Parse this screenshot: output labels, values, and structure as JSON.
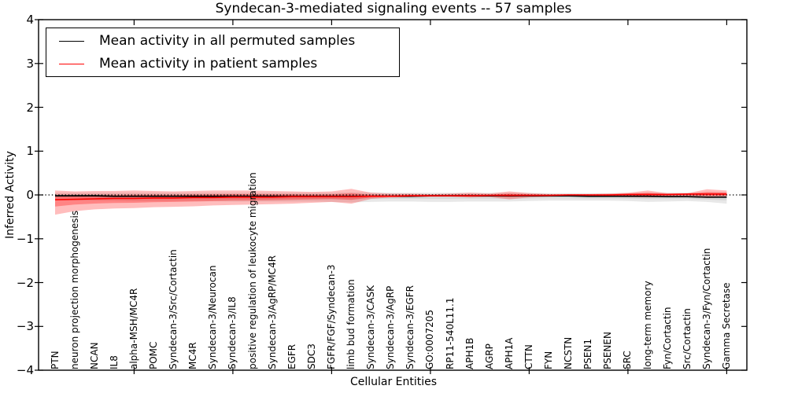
{
  "figure": {
    "title": "Syndecan-3-mediated signaling events -- 57 samples",
    "xlabel": "Cellular Entities",
    "ylabel": "Inferred Activity"
  },
  "legend": {
    "entries": [
      {
        "label": "Mean activity in all permuted samples",
        "color": "#000000"
      },
      {
        "label": "Mean activity in patient samples",
        "color": "#ff0000"
      }
    ]
  },
  "axes": {
    "y_tick_labels": [
      "4",
      "3",
      "2",
      "1",
      "0",
      "−1",
      "−2",
      "−3",
      "−4"
    ],
    "y_tick_values": [
      4,
      3,
      2,
      1,
      0,
      -1,
      -2,
      -3,
      -4
    ]
  },
  "colors": {
    "patient_line": "#ff0000",
    "permuted_line": "#000000",
    "patient_band": "rgba(255,0,0,0.26)",
    "patient_band_inner": "rgba(255,0,0,0.30)",
    "permuted_band": "rgba(0,0,0,0.09)",
    "permuted_band_inner": "rgba(0,0,0,0.07)",
    "frame": "#000000"
  },
  "chart_data": {
    "type": "line",
    "title": "Syndecan-3-mediated signaling events -- 57 samples",
    "xlabel": "Cellular Entities",
    "ylabel": "Inferred Activity",
    "ylim": [
      -4,
      4
    ],
    "grid": false,
    "legend_position": "upper left",
    "zero_line": 0,
    "x_major_tick_indices": [
      4,
      9,
      14,
      19,
      24,
      29,
      34
    ],
    "categories": [
      "PTN",
      "neuron projection morphogenesis",
      "NCAN",
      "IL8",
      "alpha-MSH/MC4R",
      "POMC",
      "Syndecan-3/Src/Cortactin",
      "MC4R",
      "Syndecan-3/Neurocan",
      "Syndecan-3/IL8",
      "positive regulation of leukocyte migration",
      "Syndecan-3/AgRP/MC4R",
      "EGFR",
      "SDC3",
      "FGFR/FGF/Syndecan-3",
      "limb bud formation",
      "Syndecan-3/CASK",
      "Syndecan-3/AgRP",
      "Syndecan-3/EGFR",
      "GO:0007205",
      "RP11-540L11.1",
      "APH1B",
      "AGRP",
      "APH1A",
      "CTTN",
      "FYN",
      "NCSTN",
      "PSEN1",
      "PSENEN",
      "SRC",
      "long-term memory",
      "Fyn/Cortactin",
      "Src/Cortactin",
      "Syndecan-3/Fyn/Cortactin",
      "Gamma Secretase"
    ],
    "series": [
      {
        "name": "Mean activity in all permuted samples",
        "color": "#000000",
        "values": [
          -0.02,
          -0.02,
          -0.02,
          -0.03,
          -0.03,
          -0.03,
          -0.03,
          -0.03,
          -0.03,
          -0.03,
          -0.03,
          -0.03,
          -0.03,
          -0.03,
          -0.03,
          -0.03,
          -0.03,
          -0.03,
          -0.03,
          -0.02,
          -0.02,
          -0.02,
          -0.02,
          -0.02,
          -0.02,
          -0.02,
          -0.02,
          -0.03,
          -0.03,
          -0.03,
          -0.03,
          -0.04,
          -0.04,
          -0.05,
          -0.05
        ],
        "band_upper": [
          0.05,
          0.05,
          0.05,
          0.05,
          0.05,
          0.05,
          0.05,
          0.05,
          0.05,
          0.05,
          0.05,
          0.05,
          0.05,
          0.05,
          0.05,
          0.06,
          0.06,
          0.05,
          0.05,
          0.05,
          0.05,
          0.05,
          0.05,
          0.05,
          0.05,
          0.04,
          0.04,
          0.04,
          0.04,
          0.04,
          0.05,
          0.05,
          0.05,
          0.05,
          0.06
        ],
        "band_lower": [
          -0.12,
          -0.12,
          -0.13,
          -0.13,
          -0.14,
          -0.14,
          -0.14,
          -0.14,
          -0.14,
          -0.15,
          -0.15,
          -0.15,
          -0.15,
          -0.15,
          -0.16,
          -0.17,
          -0.16,
          -0.15,
          -0.15,
          -0.16,
          -0.16,
          -0.15,
          -0.15,
          -0.15,
          -0.14,
          -0.13,
          -0.13,
          -0.13,
          -0.13,
          -0.14,
          -0.16,
          -0.15,
          -0.14,
          -0.16,
          -0.2
        ]
      },
      {
        "name": "Mean activity in patient samples",
        "color": "#ff0000",
        "values": [
          -0.11,
          -0.1,
          -0.09,
          -0.08,
          -0.08,
          -0.07,
          -0.07,
          -0.06,
          -0.06,
          -0.05,
          -0.05,
          -0.05,
          -0.04,
          -0.04,
          -0.04,
          -0.04,
          -0.03,
          -0.03,
          -0.02,
          -0.02,
          -0.02,
          -0.02,
          -0.01,
          -0.01,
          -0.01,
          -0.01,
          0,
          0,
          0,
          0.01,
          0.01,
          0.01,
          0.02,
          0.02,
          0.02
        ],
        "band_upper": [
          0.1,
          0.08,
          0.09,
          0.09,
          0.1,
          0.09,
          0.08,
          0.09,
          0.1,
          0.1,
          0.1,
          0.09,
          0.08,
          0.07,
          0.08,
          0.14,
          0.05,
          0.03,
          0.03,
          0.02,
          0.03,
          0.05,
          0.03,
          0.08,
          0.04,
          0.02,
          0.02,
          0.02,
          0.03,
          0.05,
          0.1,
          0.04,
          0.04,
          0.13,
          0.1
        ],
        "band_lower": [
          -0.45,
          -0.37,
          -0.33,
          -0.31,
          -0.3,
          -0.28,
          -0.27,
          -0.26,
          -0.24,
          -0.23,
          -0.22,
          -0.21,
          -0.2,
          -0.18,
          -0.16,
          -0.2,
          -0.09,
          -0.06,
          -0.05,
          -0.04,
          -0.04,
          -0.06,
          -0.05,
          -0.1,
          -0.06,
          -0.04,
          -0.03,
          -0.03,
          -0.04,
          -0.05,
          -0.06,
          -0.05,
          -0.05,
          -0.07,
          -0.06
        ]
      }
    ]
  }
}
